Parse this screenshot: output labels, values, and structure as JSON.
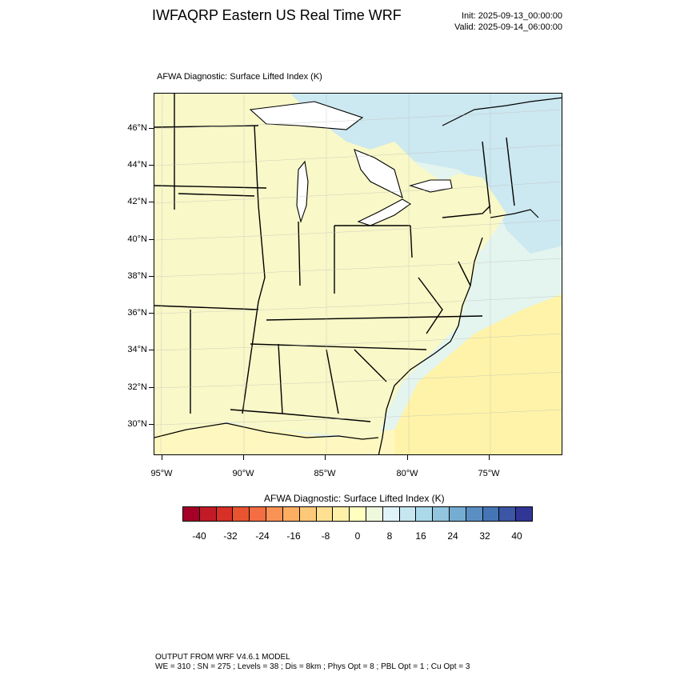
{
  "header": {
    "title": "IWFAQRP Eastern US Real Time WRF",
    "init": "Init: 2025-09-13_00:00:00",
    "valid": "Valid: 2025-09-14_06:00:00"
  },
  "map": {
    "field_title": "AFWA Diagnostic: Surface Lifted Index   (K)",
    "lat_labels": [
      "46°N",
      "44°N",
      "42°N",
      "40°N",
      "38°N",
      "36°N",
      "34°N",
      "32°N",
      "30°N"
    ],
    "lon_labels": [
      "95°W",
      "90°W",
      "85°W",
      "80°W",
      "75°W"
    ],
    "colors": {
      "land_pale_yellow": "#f8f8c8",
      "light_cyan": "#e4f4ee",
      "light_blue": "#cce8f0",
      "yellow_ocean": "#fef3a8",
      "boundary": "#000000"
    }
  },
  "colorbar": {
    "title": "AFWA Diagnostic: Surface Lifted Index  (K)",
    "tick_labels": [
      "-40",
      "-32",
      "-24",
      "-16",
      "-8",
      "0",
      "8",
      "16",
      "24",
      "32",
      "40"
    ],
    "colors": [
      "#a50026",
      "#c21b27",
      "#d73027",
      "#e8542f",
      "#f46d43",
      "#f99355",
      "#fdae61",
      "#fdc978",
      "#fee090",
      "#fef0a8",
      "#ffffbf",
      "#eef8dd",
      "#e0f3f8",
      "#c6e6f0",
      "#abd9e9",
      "#92c5de",
      "#74add1",
      "#5b8fc4",
      "#4575b4",
      "#3a56a5",
      "#313695"
    ]
  },
  "footer": {
    "line1": "OUTPUT FROM WRF V4.6.1 MODEL",
    "line2": "WE = 310 ; SN = 275 ; Levels = 38 ; Dis = 8km ; Phys Opt = 8 ; PBL Opt = 1 ; Cu Opt = 3"
  }
}
